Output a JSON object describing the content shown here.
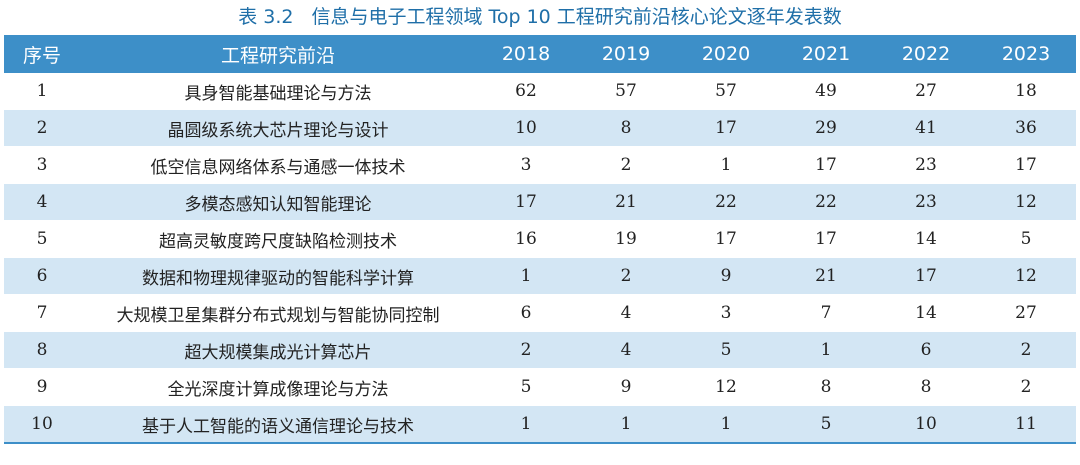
{
  "caption": {
    "number": "表 3.2",
    "title": "信息与电子工程领域 Top 10 工程研究前沿核心论文逐年发表数"
  },
  "table": {
    "headers": [
      "序号",
      "工程研究前沿",
      "2018",
      "2019",
      "2020",
      "2021",
      "2022",
      "2023"
    ],
    "rows": [
      {
        "idx": "1",
        "name": "具身智能基础理论与方法",
        "values": [
          "62",
          "57",
          "57",
          "49",
          "27",
          "18"
        ]
      },
      {
        "idx": "2",
        "name": "晶圆级系统大芯片理论与设计",
        "values": [
          "10",
          "8",
          "17",
          "29",
          "41",
          "36"
        ]
      },
      {
        "idx": "3",
        "name": "低空信息网络体系与通感一体技术",
        "values": [
          "3",
          "2",
          "1",
          "17",
          "23",
          "17"
        ]
      },
      {
        "idx": "4",
        "name": "多模态感知认知智能理论",
        "values": [
          "17",
          "21",
          "22",
          "22",
          "23",
          "12"
        ]
      },
      {
        "idx": "5",
        "name": "超高灵敏度跨尺度缺陷检测技术",
        "values": [
          "16",
          "19",
          "17",
          "17",
          "14",
          "5"
        ]
      },
      {
        "idx": "6",
        "name": "数据和物理规律驱动的智能科学计算",
        "values": [
          "1",
          "2",
          "9",
          "21",
          "17",
          "12"
        ]
      },
      {
        "idx": "7",
        "name": "大规模卫星集群分布式规划与智能协同控制",
        "values": [
          "6",
          "4",
          "3",
          "7",
          "14",
          "27"
        ]
      },
      {
        "idx": "8",
        "name": "超大规模集成光计算芯片",
        "values": [
          "2",
          "4",
          "5",
          "1",
          "6",
          "2"
        ]
      },
      {
        "idx": "9",
        "name": "全光深度计算成像理论与方法",
        "values": [
          "5",
          "9",
          "12",
          "8",
          "8",
          "2"
        ]
      },
      {
        "idx": "10",
        "name": "基于人工智能的语义通信理论与技术",
        "values": [
          "1",
          "1",
          "1",
          "5",
          "10",
          "11"
        ]
      }
    ]
  }
}
